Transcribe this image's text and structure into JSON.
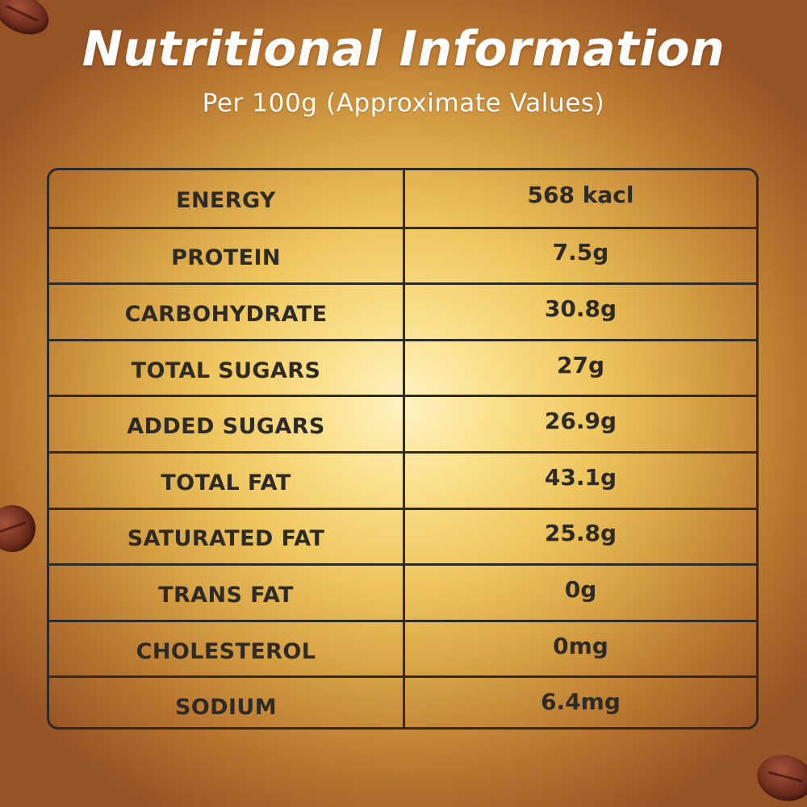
{
  "title": "Nutritional Information",
  "subtitle": "Per 100g (Approximate Values)",
  "nutrients": [
    {
      "label": "ENERGY",
      "value": "568 kacl"
    },
    {
      "label": "PROTEIN",
      "value": "7.5g"
    },
    {
      "label": "CARBOHYDRATE",
      "value": "30.8g"
    },
    {
      "label": "TOTAL SUGARS",
      "value": "27g"
    },
    {
      "label": "ADDED SUGARS",
      "value": "26.9g"
    },
    {
      "label": "TOTAL FAT",
      "value": "43.1g"
    },
    {
      "label": "SATURATED FAT",
      "value": "25.8g"
    },
    {
      "label": "TRANS FAT",
      "value": "0g"
    },
    {
      "label": "CHOLESTEROL",
      "value": "0mg"
    },
    {
      "label": "SODIUM",
      "value": "6.4mg"
    }
  ],
  "colors": {
    "text_dark": "#2e2a26",
    "title_white": "#ffffff",
    "background_center": "#fff3c4",
    "background_edge": "#965325",
    "bean": "#6e2c1c"
  },
  "decorations": [
    "cocoa-bean-icon",
    "cocoa-bean-icon",
    "cocoa-bean-icon"
  ]
}
